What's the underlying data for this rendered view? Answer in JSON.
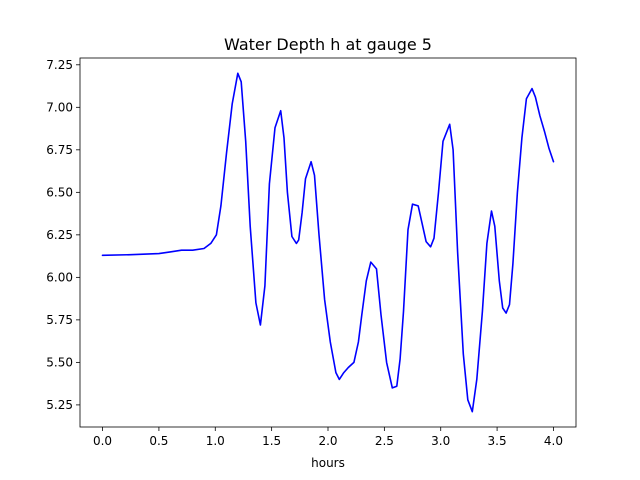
{
  "chart_data": {
    "type": "line",
    "title": "Water Depth h at gauge 5",
    "xlabel": "hours",
    "ylabel": "",
    "xlim": [
      -0.2,
      4.2
    ],
    "ylim": [
      5.12,
      7.29
    ],
    "xticks": [
      0.0,
      0.5,
      1.0,
      1.5,
      2.0,
      2.5,
      3.0,
      3.5,
      4.0
    ],
    "xtick_labels": [
      "0.0",
      "0.5",
      "1.0",
      "1.5",
      "2.0",
      "2.5",
      "3.0",
      "3.5",
      "4.0"
    ],
    "yticks": [
      5.25,
      5.5,
      5.75,
      6.0,
      6.25,
      6.5,
      6.75,
      7.0,
      7.25
    ],
    "ytick_labels": [
      "5.25",
      "5.50",
      "5.75",
      "6.00",
      "6.25",
      "6.50",
      "6.75",
      "7.00",
      "7.25"
    ],
    "grid": false,
    "series": [
      {
        "color": "#0000ff",
        "x": [
          0.0,
          0.25,
          0.5,
          0.6,
          0.7,
          0.8,
          0.9,
          0.96,
          1.01,
          1.05,
          1.1,
          1.15,
          1.2,
          1.23,
          1.27,
          1.31,
          1.36,
          1.4,
          1.44,
          1.48,
          1.53,
          1.58,
          1.61,
          1.64,
          1.68,
          1.72,
          1.74,
          1.77,
          1.8,
          1.85,
          1.88,
          1.92,
          1.97,
          2.02,
          2.07,
          2.1,
          2.14,
          2.18,
          2.23,
          2.27,
          2.3,
          2.34,
          2.38,
          2.43,
          2.47,
          2.52,
          2.57,
          2.61,
          2.64,
          2.67,
          2.71,
          2.75,
          2.8,
          2.83,
          2.87,
          2.91,
          2.94,
          2.98,
          3.02,
          3.08,
          3.11,
          3.15,
          3.2,
          3.24,
          3.28,
          3.32,
          3.37,
          3.41,
          3.45,
          3.48,
          3.52,
          3.55,
          3.58,
          3.61,
          3.64,
          3.68,
          3.72,
          3.76,
          3.81,
          3.84,
          3.88,
          3.92,
          3.96,
          4.0
        ],
        "y": [
          6.13,
          6.133,
          6.14,
          6.15,
          6.16,
          6.16,
          6.17,
          6.2,
          6.25,
          6.42,
          6.73,
          7.02,
          7.2,
          7.15,
          6.8,
          6.3,
          5.85,
          5.72,
          5.95,
          6.55,
          6.88,
          6.98,
          6.82,
          6.5,
          6.24,
          6.2,
          6.22,
          6.38,
          6.58,
          6.68,
          6.6,
          6.25,
          5.87,
          5.62,
          5.44,
          5.4,
          5.44,
          5.47,
          5.5,
          5.62,
          5.78,
          5.98,
          6.09,
          6.05,
          5.78,
          5.5,
          5.35,
          5.36,
          5.52,
          5.8,
          6.28,
          6.43,
          6.42,
          6.33,
          6.21,
          6.18,
          6.23,
          6.5,
          6.8,
          6.9,
          6.75,
          6.15,
          5.55,
          5.28,
          5.21,
          5.4,
          5.8,
          6.2,
          6.39,
          6.3,
          5.98,
          5.82,
          5.79,
          5.84,
          6.08,
          6.5,
          6.82,
          7.05,
          7.11,
          7.06,
          6.95,
          6.86,
          6.76,
          6.68
        ]
      }
    ]
  }
}
